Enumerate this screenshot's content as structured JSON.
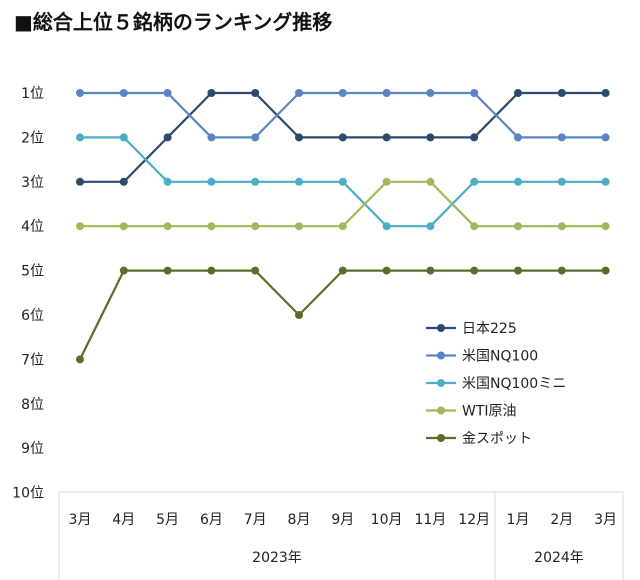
{
  "title": "■総合上位５銘柄のランキング推移",
  "chart_data": {
    "type": "line",
    "title": "■総合上位５銘柄のランキング推移",
    "categories": [
      "3月",
      "4月",
      "5月",
      "6月",
      "7月",
      "8月",
      "9月",
      "10月",
      "11月",
      "12月",
      "1月",
      "2月",
      "3月"
    ],
    "year_groups": [
      {
        "label": "2023年",
        "start": 0,
        "end": 9
      },
      {
        "label": "2024年",
        "start": 10,
        "end": 12
      }
    ],
    "y_ticks": [
      "1位",
      "2位",
      "3位",
      "4位",
      "5位",
      "6位",
      "7位",
      "8位",
      "9位",
      "10位"
    ],
    "ylim": [
      1,
      10
    ],
    "y_inverted": true,
    "grid": false,
    "legend_position": "right",
    "series": [
      {
        "name": "日本225",
        "color": "#2b4a6e",
        "values": [
          3,
          3,
          2,
          1,
          1,
          2,
          2,
          2,
          2,
          2,
          1,
          1,
          1
        ]
      },
      {
        "name": "米国NQ100",
        "color": "#5b84c4",
        "values": [
          1,
          1,
          1,
          2,
          2,
          1,
          1,
          1,
          1,
          1,
          2,
          2,
          2
        ]
      },
      {
        "name": "米国NQ100ミニ",
        "color": "#4badc6",
        "values": [
          2,
          2,
          3,
          3,
          3,
          3,
          3,
          4,
          4,
          3,
          3,
          3,
          3
        ]
      },
      {
        "name": "WTI原油",
        "color": "#9dbb59",
        "values": [
          4,
          4,
          4,
          4,
          4,
          4,
          4,
          3,
          3,
          4,
          4,
          4,
          4
        ]
      },
      {
        "name": "金スポット",
        "color": "#5a6e2b",
        "values": [
          7,
          5,
          5,
          5,
          5,
          6,
          5,
          5,
          5,
          5,
          5,
          5,
          5
        ]
      }
    ]
  }
}
